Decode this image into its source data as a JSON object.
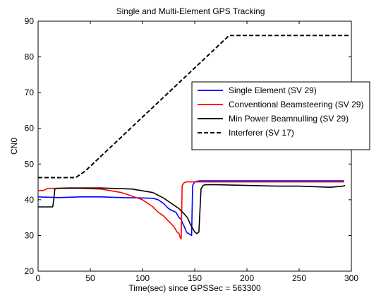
{
  "chart_data": {
    "type": "line",
    "title": "Single and Multi-Element GPS Tracking",
    "xlabel": "Time(sec) since GPSSec = 563300",
    "ylabel": "CN0",
    "xlim": [
      0,
      300
    ],
    "ylim": [
      20,
      90
    ],
    "xticks": [
      0,
      50,
      100,
      150,
      200,
      250,
      300
    ],
    "yticks": [
      20,
      30,
      40,
      50,
      60,
      70,
      80,
      90
    ],
    "grid": false,
    "legend_position": "right",
    "series": [
      {
        "name": "Single Element (SV 29)",
        "color": "#0000ff",
        "dash": "solid",
        "x": [
          0,
          20,
          40,
          60,
          80,
          100,
          110,
          115,
          120,
          125,
          128,
          132,
          135,
          137,
          139,
          140,
          142,
          144,
          146,
          147,
          148,
          150,
          152,
          155,
          160,
          200,
          250,
          293
        ],
        "y": [
          40.8,
          40.6,
          40.8,
          40.8,
          40.6,
          40.5,
          40.4,
          40.0,
          39.0,
          37.5,
          37.0,
          36.5,
          35.0,
          34.5,
          33.0,
          32.5,
          31.0,
          30.5,
          30.2,
          30.0,
          44.0,
          45.0,
          45.2,
          45.3,
          45.3,
          45.3,
          45.3,
          45.3
        ]
      },
      {
        "name": "Conventional Beamsteering (SV 29)",
        "color": "#ff0000",
        "dash": "solid",
        "x": [
          0,
          5,
          8,
          10,
          20,
          40,
          60,
          80,
          90,
          100,
          105,
          110,
          115,
          120,
          125,
          130,
          133,
          135,
          136,
          137,
          138,
          140,
          142,
          145,
          150,
          200,
          250,
          293
        ],
        "y": [
          42.5,
          42.6,
          43.0,
          43.2,
          43.2,
          43.2,
          43.0,
          42.0,
          41.0,
          40.0,
          39.0,
          38.0,
          36.5,
          35.5,
          34.0,
          32.5,
          31.0,
          30.5,
          29.5,
          29.0,
          44.0,
          44.8,
          45.0,
          45.0,
          45.0,
          45.0,
          45.0,
          45.0
        ]
      },
      {
        "name": "Min Power Beamnulling (SV 29)",
        "color": "#000000",
        "dash": "solid",
        "x": [
          0,
          5,
          10,
          14,
          15,
          16,
          18,
          30,
          60,
          90,
          100,
          110,
          120,
          125,
          130,
          135,
          140,
          143,
          146,
          150,
          152,
          154,
          156,
          158,
          160,
          170,
          200,
          230,
          250,
          280,
          292,
          294
        ],
        "y": [
          38.0,
          38.0,
          38.0,
          38.0,
          40.0,
          43.0,
          43.2,
          43.3,
          43.3,
          43.0,
          42.5,
          42.0,
          40.5,
          39.5,
          38.5,
          37.5,
          36.0,
          35.0,
          33.0,
          31.0,
          30.5,
          31.0,
          43.0,
          44.0,
          44.2,
          44.2,
          44.0,
          43.8,
          43.8,
          43.5,
          43.8,
          44.0
        ]
      },
      {
        "name": "Interferer (SV 17)",
        "color": "#000000",
        "dash": "dashed",
        "x": [
          0,
          36,
          45,
          183,
          190,
          298
        ],
        "y": [
          46.2,
          46.2,
          48.0,
          86.0,
          86.0,
          86.0
        ]
      }
    ]
  }
}
